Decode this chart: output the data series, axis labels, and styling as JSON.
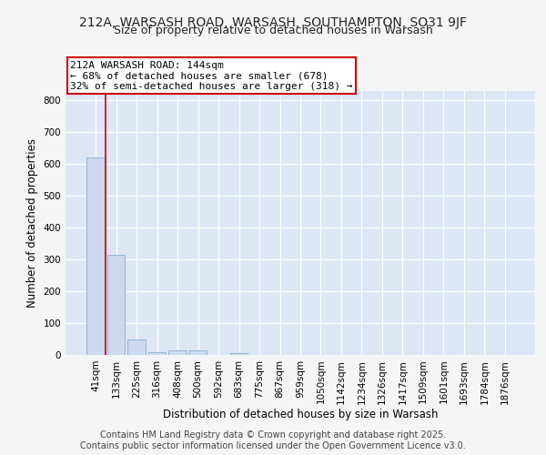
{
  "title1": "212A, WARSASH ROAD, WARSASH, SOUTHAMPTON, SO31 9JF",
  "title2": "Size of property relative to detached houses in Warsash",
  "xlabel": "Distribution of detached houses by size in Warsash",
  "ylabel": "Number of detached properties",
  "categories": [
    "41sqm",
    "133sqm",
    "225sqm",
    "316sqm",
    "408sqm",
    "500sqm",
    "592sqm",
    "683sqm",
    "775sqm",
    "867sqm",
    "959sqm",
    "1050sqm",
    "1142sqm",
    "1234sqm",
    "1326sqm",
    "1417sqm",
    "1509sqm",
    "1601sqm",
    "1693sqm",
    "1784sqm",
    "1876sqm"
  ],
  "values": [
    620,
    315,
    50,
    10,
    13,
    13,
    0,
    7,
    0,
    0,
    0,
    0,
    0,
    0,
    0,
    0,
    0,
    0,
    0,
    0,
    0
  ],
  "bar_color": "#ccd9ee",
  "bar_edge_color": "#8aadd4",
  "red_line_color": "#cc0000",
  "annotation_text": "212A WARSASH ROAD: 144sqm\n← 68% of detached houses are smaller (678)\n32% of semi-detached houses are larger (318) →",
  "annotation_box_color": "#ffffff",
  "annotation_border_color": "#cc0000",
  "background_color": "#dce6f5",
  "grid_color": "#ffffff",
  "ylim": [
    0,
    830
  ],
  "yticks": [
    0,
    100,
    200,
    300,
    400,
    500,
    600,
    700,
    800
  ],
  "footer1": "Contains HM Land Registry data © Crown copyright and database right 2025.",
  "footer2": "Contains public sector information licensed under the Open Government Licence v3.0.",
  "title1_fontsize": 10,
  "title2_fontsize": 9,
  "xlabel_fontsize": 8.5,
  "ylabel_fontsize": 8.5,
  "tick_fontsize": 7.5,
  "annotation_fontsize": 8,
  "footer_fontsize": 7
}
